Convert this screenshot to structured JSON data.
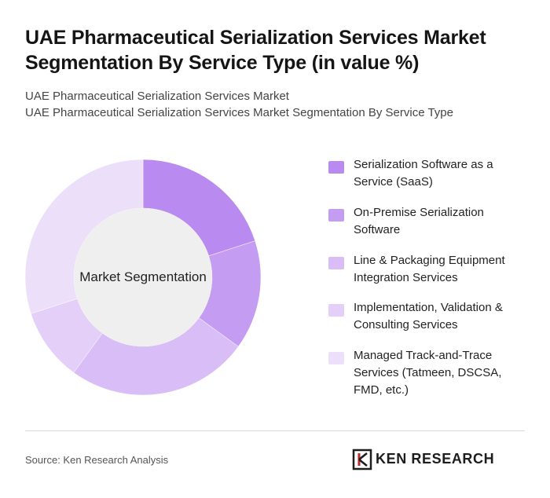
{
  "header": {
    "title": "UAE Pharmaceutical Serialization Services Market Segmentation By Service Type (in value %)",
    "subtitle_1": "UAE Pharmaceutical Serialization Services Market",
    "subtitle_2": "UAE Pharmaceutical Serialization Services Market Segmentation By Service Type"
  },
  "chart_data": {
    "type": "pie",
    "variant": "donut",
    "center_label": "Market Segmentation",
    "legend_position": "right",
    "categories": [
      "Serialization Software as a Service (SaaS)",
      "On-Premise Serialization Software",
      "Line & Packaging Equipment Integration Services",
      "Implementation, Validation & Consulting Services",
      "Managed Track-and-Trace Services (Tatmeen, DSCSA, FMD, etc.)"
    ],
    "values": [
      20,
      15,
      25,
      10,
      30
    ],
    "colors": [
      "#b98af0",
      "#c49cf2",
      "#d8bdf6",
      "#e3cff8",
      "#ecdffa"
    ]
  },
  "footer": {
    "source": "Source: Ken Research Analysis",
    "brand": "KEN RESEARCH"
  }
}
